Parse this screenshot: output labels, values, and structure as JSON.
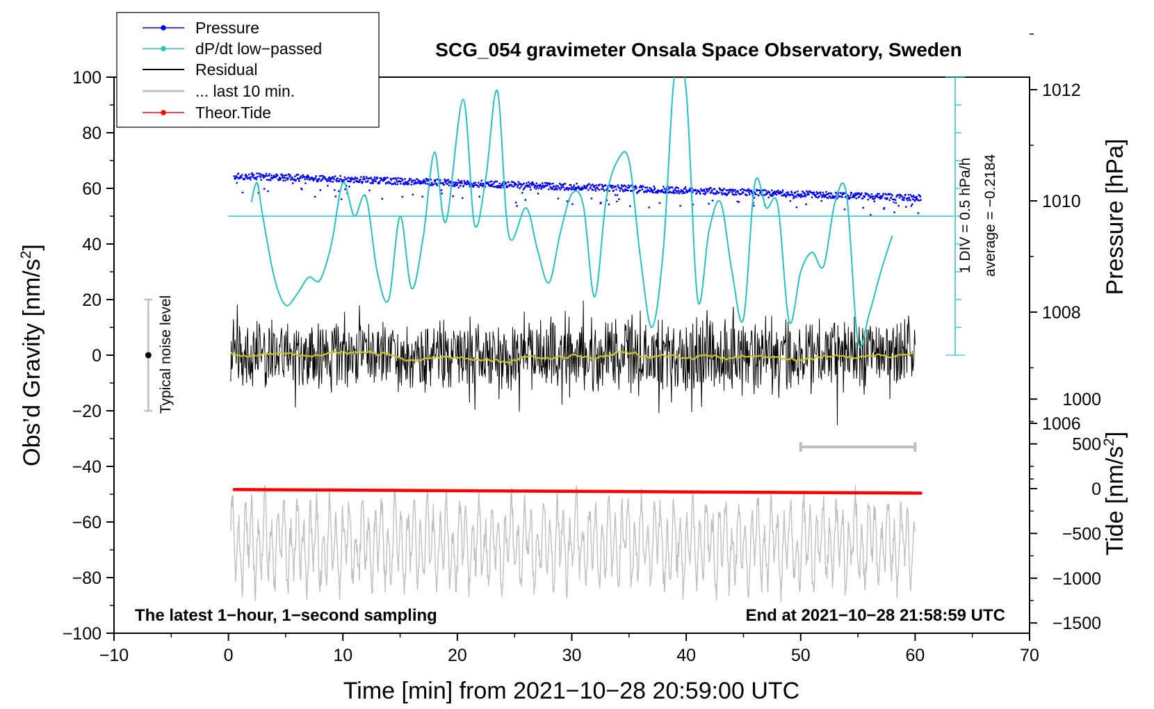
{
  "chart_data": {
    "type": "line",
    "title": "SCG_054 gravimeter Onsala Space Observatory, Sweden",
    "xlabel": "Time [min] from 2021−10−28 20:59:00 UTC",
    "ylabel_left": "Obs’d Gravity [nm/s²]",
    "ylabel_left_main": "Obs’d Gravity [nm/s",
    "ylabel_left_sup": "2",
    "ylabel_left_end": "]",
    "ylabel_right_pressure": "Pressure [hPa]",
    "ylabel_right_tide": "Tide [nm/s²]",
    "ylabel_right_tide_main": "Tide [nm/s",
    "ylabel_right_tide_sup": "2",
    "ylabel_right_tide_end": "]",
    "xlim": [
      -10,
      70
    ],
    "ylim_left": [
      -100,
      100
    ],
    "x_ticks": [
      "−10",
      "0",
      "10",
      "20",
      "30",
      "40",
      "50",
      "60",
      "70"
    ],
    "y_ticks_left": [
      "100",
      "80",
      "60",
      "40",
      "20",
      "0",
      "−20",
      "−40",
      "−60",
      "−80",
      "−100"
    ],
    "pressure_ticks": [
      "1012",
      "1010",
      "1008",
      "1006"
    ],
    "tide_ticks": [
      "1000",
      "500",
      "0",
      "−500",
      "−1000",
      "−1500"
    ],
    "legend": [
      "Pressure",
      "dP/dt low−passed",
      "Residual",
      "... last 10 min.",
      "Theor.Tide"
    ],
    "colors": {
      "pressure": "#0000ff",
      "dpdt": "#20c4c4",
      "residual": "#000000",
      "last10": "#bfbfbf",
      "tide": "#ff0000",
      "smoothed": "#c8c81e",
      "noise_bar": "#bfbfbf"
    },
    "dpdt_label_1": "1 DIV = 0.5 hPa/h",
    "dpdt_label_2": "average = −0.2184",
    "dpdt_reference_level": 50,
    "noise_label": "Typical noise level",
    "noise_bar_range": [
      -20,
      20
    ],
    "note_left": "The latest 1−hour, 1−second sampling",
    "note_right": "End at 2021−10−28 21:58:59 UTC",
    "last10_bar_x": [
      50,
      60
    ],
    "last10_bar_y": -33,
    "series": {
      "pressure_hpa": {
        "x": [
          0.5,
          60.5
        ],
        "y": [
          1010.45,
          1010.05
        ],
        "noise": 0.35
      },
      "tide_nms2": {
        "x": [
          0.5,
          60.5
        ],
        "y": [
          -10,
          -50
        ]
      },
      "residual_amplitude": 13,
      "last10_offset": -68,
      "dpdt_lowpassed": {
        "x": [
          2,
          2.5,
          3,
          4,
          5,
          6,
          7,
          8,
          9,
          10,
          11,
          12,
          13,
          14,
          15,
          16,
          17,
          18,
          19,
          20.5,
          21.5,
          22.5,
          23.5,
          24.5,
          26,
          27,
          28,
          29,
          30,
          31,
          32,
          33,
          34,
          35,
          36,
          37,
          38,
          39,
          40,
          41,
          42,
          43,
          44,
          45,
          46,
          47,
          48,
          49,
          50,
          51,
          52,
          53,
          54,
          55,
          56,
          57,
          58
        ],
        "y": [
          55,
          62,
          50,
          28,
          18,
          22,
          28,
          27,
          40,
          62,
          50,
          57,
          30,
          20,
          50,
          24,
          42,
          73,
          48,
          92,
          47,
          64,
          95,
          43,
          53,
          38,
          26,
          44,
          58,
          54,
          21,
          56,
          70,
          70,
          35,
          10,
          38,
          102,
          95,
          20,
          45,
          55,
          30,
          13,
          62,
          53,
          54,
          12,
          30,
          37,
          32,
          55,
          58,
          5,
          15,
          30,
          43
        ]
      }
    }
  }
}
